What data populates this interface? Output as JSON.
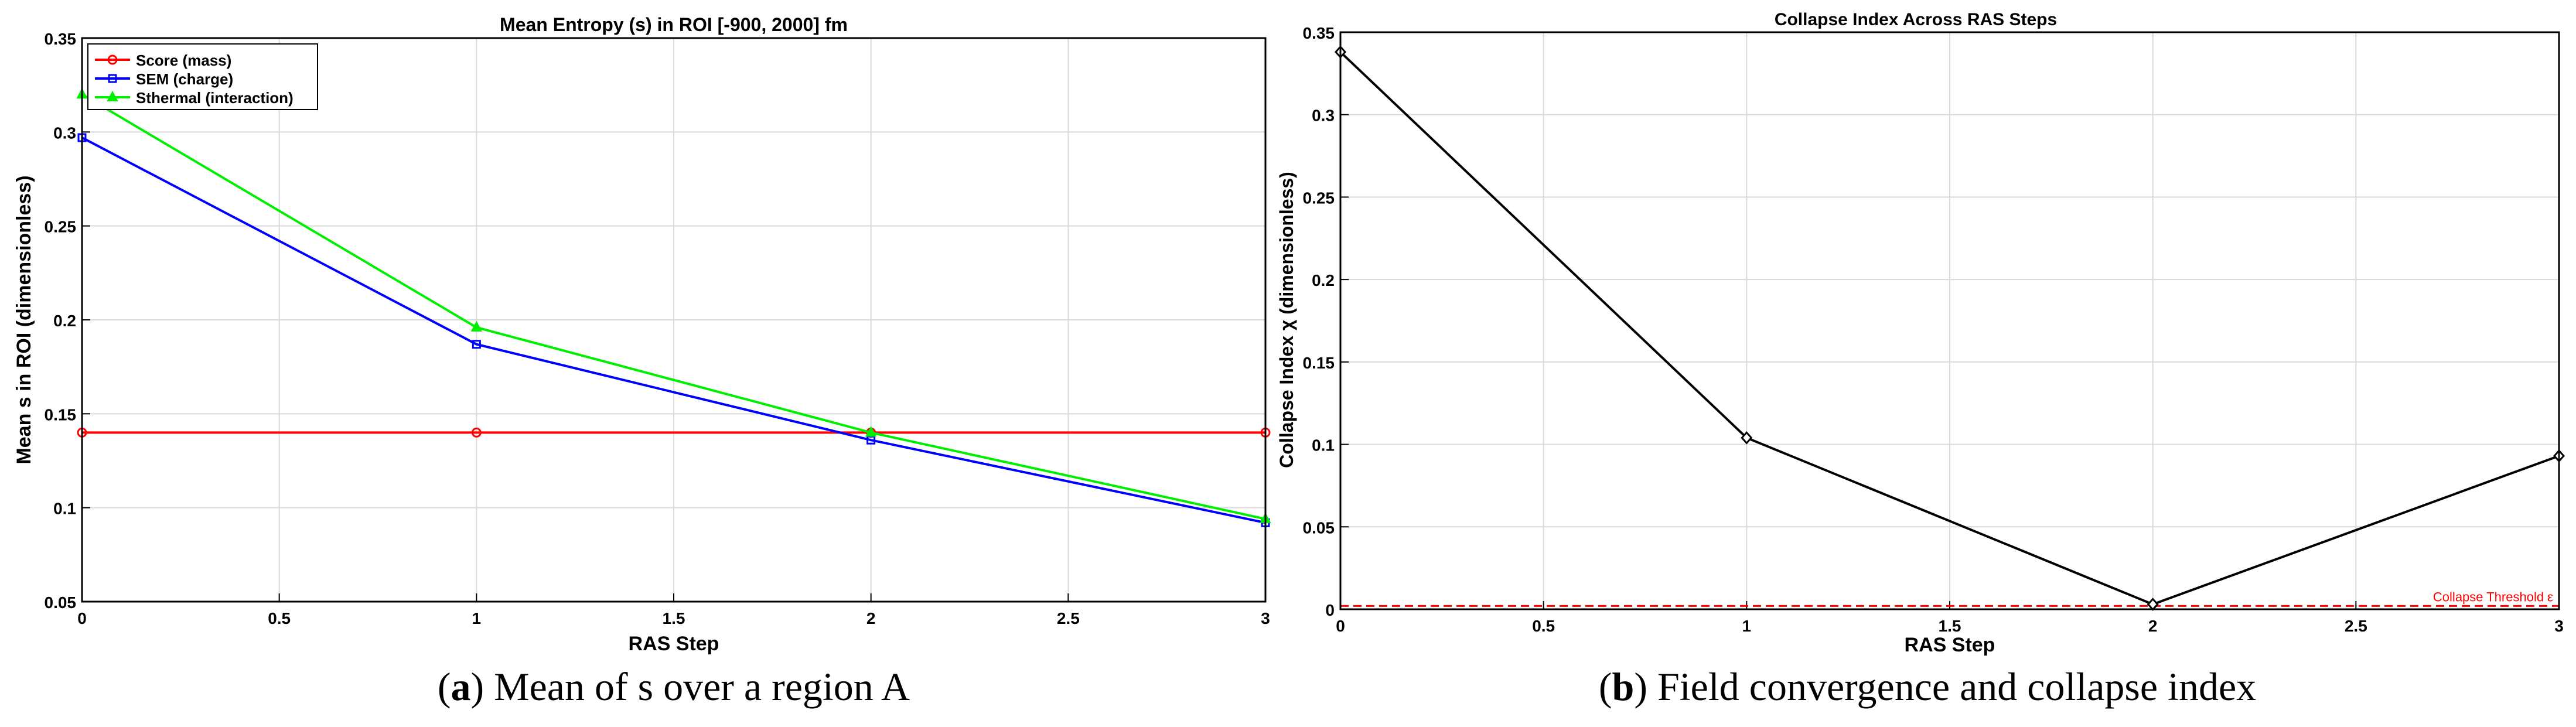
{
  "chart_data": [
    {
      "type": "line",
      "title": "Mean Entropy (s) in ROI [-900, 2000] fm",
      "xlabel": "RAS Step",
      "ylabel": "Mean s in ROI (dimensionless)",
      "x": [
        0,
        1,
        2,
        3
      ],
      "xlim": [
        0,
        3
      ],
      "ylim": [
        0.05,
        0.35
      ],
      "xticks": [
        0,
        0.5,
        1,
        1.5,
        2,
        2.5,
        3
      ],
      "yticks": [
        0.05,
        0.1,
        0.15,
        0.2,
        0.25,
        0.3,
        0.35
      ],
      "grid": true,
      "legend": "top-left",
      "series": [
        {
          "name": "Score (mass)",
          "values": [
            0.14,
            0.14,
            0.14,
            0.14
          ],
          "color": "#ff0000",
          "marker": "circle"
        },
        {
          "name": "SEM (charge)",
          "values": [
            0.297,
            0.187,
            0.136,
            0.092
          ],
          "color": "#0000ff",
          "marker": "square"
        },
        {
          "name": "Sthermal (interaction)",
          "values": [
            0.32,
            0.196,
            0.14,
            0.094
          ],
          "color": "#00ee00",
          "marker": "triangle"
        }
      ],
      "caption_bold": "a",
      "caption_rest": ") Mean of s over a region A"
    },
    {
      "type": "line",
      "title": "Collapse Index Across RAS Steps",
      "xlabel": "RAS Step",
      "ylabel": "Collapse  Index  χ  (dimensionless)",
      "x": [
        0,
        1,
        2,
        3
      ],
      "xlim": [
        0,
        3
      ],
      "ylim": [
        0,
        0.35
      ],
      "xticks": [
        0,
        0.5,
        1,
        1.5,
        2,
        2.5,
        3
      ],
      "yticks": [
        0,
        0.05,
        0.1,
        0.15,
        0.2,
        0.25,
        0.3,
        0.35
      ],
      "grid": true,
      "series": [
        {
          "values": [
            0.338,
            0.104,
            0.003,
            0.093
          ],
          "color": "#000000",
          "marker": "diamond"
        }
      ],
      "threshold": {
        "value": 0.002,
        "label": "Collapse  Threshold  ε",
        "color": "#ff0000"
      },
      "caption_bold": "b",
      "caption_rest": ") Field convergence and collapse index"
    }
  ]
}
